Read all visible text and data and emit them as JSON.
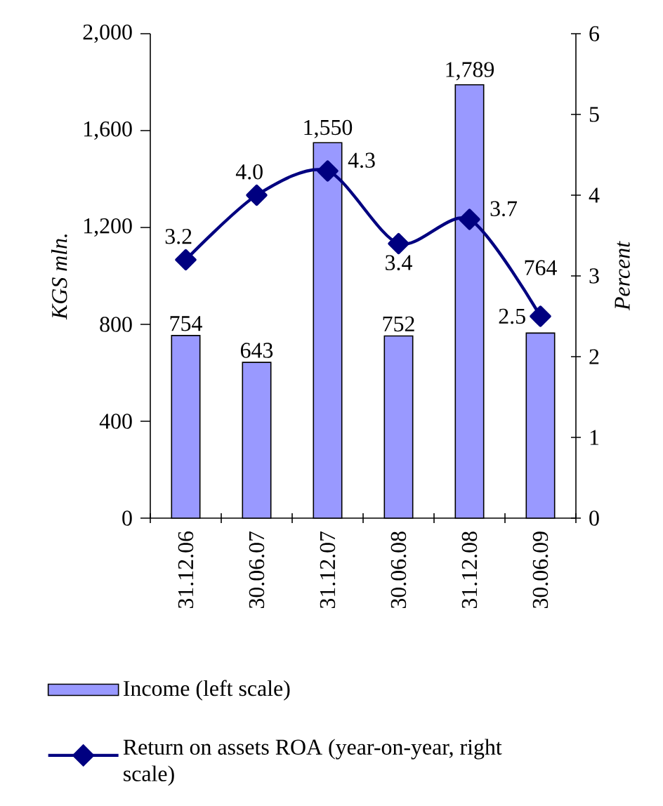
{
  "chart_data": {
    "type": "bar",
    "categories": [
      "31.12.06",
      "30.06.07",
      "31.12.07",
      "30.06.08",
      "31.12.08",
      "30.06.09"
    ],
    "ylabel": "KGS mln.",
    "y2label": "Percent",
    "ylim": [
      0,
      2000
    ],
    "yticks": [
      0,
      400,
      800,
      {
        "value": 1200,
        "label": "1,200"
      },
      {
        "value": 1600,
        "label": "1,600"
      },
      {
        "value": 2000,
        "label": "2,000"
      }
    ],
    "y2lim": [
      0,
      6
    ],
    "y2ticks": [
      0,
      1,
      2,
      3,
      4,
      5,
      6
    ],
    "legend": "bottom",
    "series": [
      {
        "name": "Income (left scale)",
        "color": "#9999ff",
        "values": [
          754,
          643,
          1550,
          752,
          1789,
          764
        ],
        "value_labels": [
          "754",
          "643",
          "1,550",
          "752",
          "1,789",
          "764"
        ]
      },
      {
        "name": "Return on assets ROA (year-on-year, right scale)",
        "type": "line",
        "axis": "y2",
        "color": "#000080",
        "marker": "diamond",
        "values": [
          3.2,
          4.0,
          4.3,
          3.4,
          3.7,
          2.5
        ],
        "value_labels": [
          "3.2",
          "4.0",
          "4.3",
          "3.4",
          "3.7",
          "2.5"
        ]
      }
    ]
  }
}
